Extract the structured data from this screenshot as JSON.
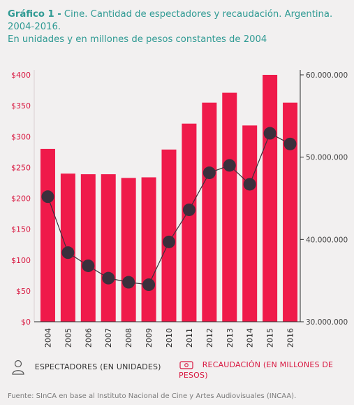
{
  "title": {
    "lead": "Gráfico 1 -",
    "rest": "Cine. Cantidad de espectadores y recaudación. Argentina. 2004-2016.",
    "line2": "En unidades y en millones de pesos constantes de 2004"
  },
  "colors": {
    "bars": "#ef1a4a",
    "line": "#3b2f3c",
    "left_axis": "#d8163f",
    "right_axis": "#444444",
    "title": "#2f9a93"
  },
  "chart_data": {
    "type": "bar",
    "categories": [
      "2004",
      "2005",
      "2006",
      "2007",
      "2008",
      "2009",
      "2010",
      "2011",
      "2012",
      "2013",
      "2014",
      "2015",
      "2016"
    ],
    "series": [
      {
        "name": "RECAUDACIÓN (EN MILLONES DE PESOS)",
        "type": "bar",
        "axis": "left",
        "values": [
          280,
          240,
          239,
          239,
          233,
          234,
          279,
          321,
          355,
          371,
          318,
          400,
          355
        ]
      },
      {
        "name": "ESPECTADORES (EN UNIDADES)",
        "type": "line",
        "axis": "right",
        "values": [
          45200000,
          38400000,
          36800000,
          35300000,
          34800000,
          34500000,
          39700000,
          43600000,
          48100000,
          49000000,
          46700000,
          52900000,
          51600000
        ]
      }
    ],
    "y_left": {
      "ylim": [
        0,
        400
      ],
      "ticks": [
        0,
        50,
        100,
        150,
        200,
        250,
        300,
        350,
        400
      ],
      "tick_labels": [
        "$0",
        "$50",
        "$100",
        "$150",
        "$200",
        "$250",
        "$300",
        "$350",
        "$400"
      ]
    },
    "y_right": {
      "ylim": [
        30000000,
        60000000
      ],
      "ticks": [
        30000000,
        40000000,
        50000000,
        60000000
      ],
      "tick_labels": [
        "30.000.000",
        "40.000.000",
        "50.000.000",
        "60.000.000"
      ]
    }
  },
  "legend": {
    "espectadores": {
      "label": "ESPECTADORES (EN UNIDADES)",
      "icon": "person-icon"
    },
    "recaudacion": {
      "label": "RECAUDACIÓN (EN MILLONES DE PESOS)",
      "icon": "cash-icon"
    }
  },
  "source": "Fuente: SInCA en base al Instituto Nacional de Cine y Artes Audiovisuales (INCAA)."
}
